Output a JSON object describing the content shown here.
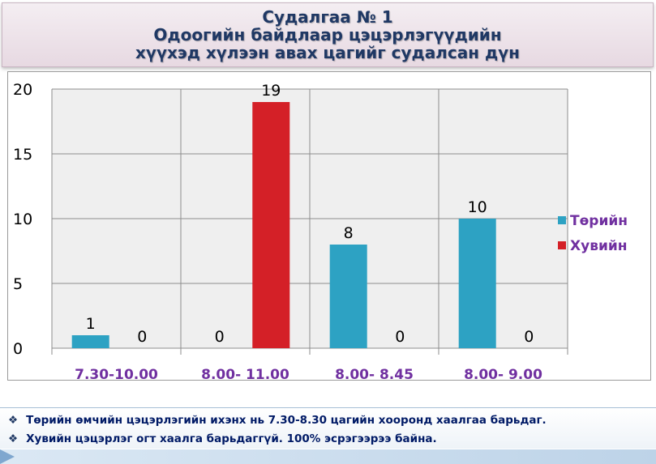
{
  "header": {
    "title_lines": [
      "Судалгаа № 1",
      "Одоогийн байдлаар цэцэрлэгүүдийн",
      "хүүхэд хүлээн авах цагийг судалсан дүн"
    ]
  },
  "chart_data": {
    "type": "bar",
    "title": "",
    "xlabel": "",
    "ylabel": "",
    "ylim": [
      0,
      20
    ],
    "yticks": [
      0,
      5,
      10,
      15,
      20
    ],
    "categories": [
      "7.30-10.00",
      "8.00- 11.00",
      "8.00- 8.45",
      "8.00- 9.00"
    ],
    "series": [
      {
        "name": "Төрийн",
        "values": [
          1,
          0,
          8,
          10
        ],
        "color": "#2da2c3"
      },
      {
        "name": "Хувийн",
        "values": [
          0,
          19,
          0,
          0
        ],
        "color": "#d42027"
      }
    ],
    "grid": true,
    "plot_background": "#efefef",
    "legend_position": "right",
    "category_label_color": "#7030a0",
    "legend_text_color": "#7030a0"
  },
  "notes": [
    "Төрийн өмчийн цэцэрлэгийн ихэнх нь  7.30-8.30 цагийн хооронд хаалгаа барьдаг.",
    "Хувийн цэцэрлэг огт хаалга барьдаггүй.  100% эсрэгээрээ байна."
  ],
  "note_bullet": "❖"
}
